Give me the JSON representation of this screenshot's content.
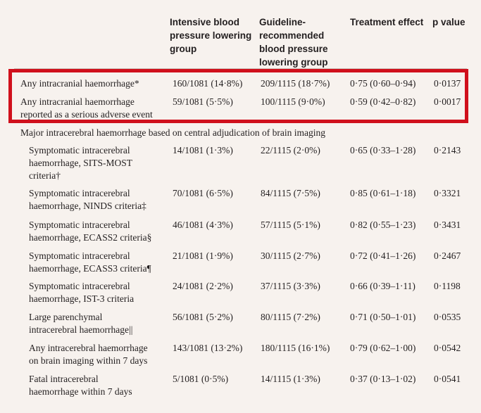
{
  "table": {
    "headers": [
      "",
      "Intensive blood\npressure lowering\ngroup",
      "Guideline-\nrecommended\nblood pressure\nlowering group",
      "Treatment effect",
      "p value"
    ],
    "rows": [
      {
        "label": "Any intracranial haemorrhage*",
        "a": "160/1081 (14·8%)",
        "b": "209/1115 (18·7%)",
        "c": "0·75 (0·60–0·94)",
        "d": "0·0137"
      },
      {
        "label": "Any intracranial haemorrhage\nreported as a serious adverse event",
        "a": "59/1081 (5·5%)",
        "b": "100/1115 (9·0%)",
        "c": "0·59 (0·42–0·82)",
        "d": "0·0017"
      },
      {
        "label": "Major intracerebral haemorrhage based on central adjudication of brain imaging"
      },
      {
        "label": "Symptomatic intracerebral\nhaemorrhage, SITS-MOST\ncriteria†",
        "a": "14/1081 (1·3%)",
        "b": "22/1115 (2·0%)",
        "c": "0·65 (0·33–1·28)",
        "d": "0·2143"
      },
      {
        "label": "Symptomatic intracerebral\nhaemorrhage, NINDS criteria‡",
        "a": "70/1081 (6·5%)",
        "b": "84/1115 (7·5%)",
        "c": "0·85 (0·61–1·18)",
        "d": "0·3321"
      },
      {
        "label": "Symptomatic intracerebral\nhaemorrhage, ECASS2 criteria§",
        "a": "46/1081 (4·3%)",
        "b": "57/1115 (5·1%)",
        "c": "0·82 (0·55–1·23)",
        "d": "0·3431"
      },
      {
        "label": "Symptomatic intracerebral\nhaemorrhage, ECASS3 criteria¶",
        "a": "21/1081 (1·9%)",
        "b": "30/1115 (2·7%)",
        "c": "0·72 (0·41–1·26)",
        "d": "0·2467"
      },
      {
        "label": "Symptomatic intracerebral\nhaemorrhage, IST-3 criteria",
        "a": "24/1081 (2·2%)",
        "b": "37/1115 (3·3%)",
        "c": "0·66 (0·39–1·11)",
        "d": "0·1198"
      },
      {
        "label": "Large parenchymal\nintracerebral haemorrhage||",
        "a": "56/1081 (5·2%)",
        "b": "80/1115 (7·2%)",
        "c": "0·71 (0·50–1·01)",
        "d": "0·0535"
      },
      {
        "label": "Any intracerebral haemorrhage\non brain imaging within 7 days",
        "a": "143/1081 (13·2%)",
        "b": "180/1115 (16·1%)",
        "c": "0·79 (0·62–1·00)",
        "d": "0·0542"
      },
      {
        "label": "Fatal intracerebral\nhaemorrhage within 7 days",
        "a": "5/1081 (0·5%)",
        "b": "14/1115 (1·3%)",
        "c": "0·37 (0·13–1·02)",
        "d": "0·0541"
      }
    ]
  },
  "highlight_color": "#d0101c"
}
